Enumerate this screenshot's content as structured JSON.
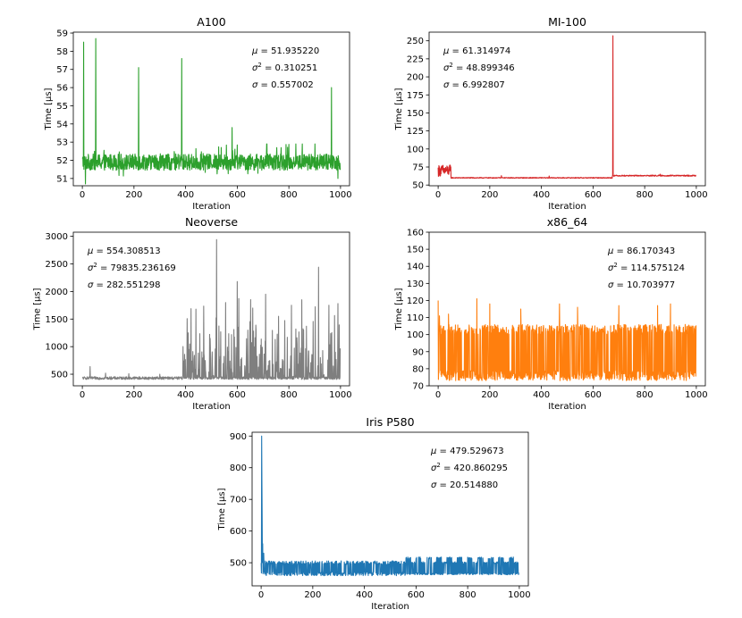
{
  "chart_data": [
    {
      "type": "line",
      "title": "A100",
      "xlabel": "Iteration",
      "ylabel": "Time [μs]",
      "xlim": [
        -35,
        1035
      ],
      "ylim": [
        50.6,
        59.05
      ],
      "xticks": [
        0,
        200,
        400,
        600,
        800,
        1000
      ],
      "yticks": [
        51,
        52,
        53,
        54,
        55,
        56,
        57,
        58,
        59
      ],
      "color": "#2ca02c",
      "stats": [
        {
          "sym": "μ",
          "sup": "",
          "value": "51.935220"
        },
        {
          "sym": "σ",
          "sup": "2",
          "value": "0.310251"
        },
        {
          "sym": "σ",
          "sup": "",
          "value": "0.557002"
        }
      ],
      "series": {
        "base": 51.9,
        "noise": 0.45,
        "min": 50.7,
        "max": 59,
        "spikes": [
          [
            5,
            58.5
          ],
          [
            12,
            50.7
          ],
          [
            52,
            58.7
          ],
          [
            218,
            57.1
          ],
          [
            385,
            57.6
          ],
          [
            580,
            53.8
          ],
          [
            965,
            56.0
          ],
          [
            990,
            51.0
          ]
        ]
      }
    },
    {
      "type": "line",
      "title": "MI-100",
      "xlabel": "Iteration",
      "ylabel": "Time [μs]",
      "xlim": [
        -35,
        1035
      ],
      "ylim": [
        49,
        262
      ],
      "xticks": [
        0,
        200,
        400,
        600,
        800,
        1000
      ],
      "yticks": [
        50,
        75,
        100,
        125,
        150,
        175,
        200,
        225,
        250
      ],
      "color": "#d62728",
      "stats": [
        {
          "sym": "μ",
          "sup": "",
          "value": "61.314974"
        },
        {
          "sym": "σ",
          "sup": "2",
          "value": "48.899346"
        },
        {
          "sym": "σ",
          "sup": "",
          "value": "6.992807"
        }
      ],
      "series": {
        "segments": [
          [
            0,
            50,
            70,
            8
          ],
          [
            50,
            675,
            60,
            0.6
          ],
          [
            675,
            1000,
            63,
            0.8
          ]
        ],
        "spikes": [
          [
            677,
            257
          ],
          [
            245,
            63
          ],
          [
            430,
            62.5
          ],
          [
            860,
            65
          ]
        ]
      }
    },
    {
      "type": "line",
      "title": "Neoverse",
      "xlabel": "Iteration",
      "ylabel": "Time [μs]",
      "xlim": [
        -35,
        1035
      ],
      "ylim": [
        290,
        3075
      ],
      "xticks": [
        0,
        200,
        400,
        600,
        800,
        1000
      ],
      "yticks": [
        500,
        1000,
        1500,
        2000,
        2500,
        3000
      ],
      "color": "#7f7f7f",
      "stats": [
        {
          "sym": "μ",
          "sup": "",
          "value": "554.308513"
        },
        {
          "sym": "σ",
          "sup": "2",
          "value": "79835.236169"
        },
        {
          "sym": "σ",
          "sup": "",
          "value": "282.551298"
        }
      ],
      "series": {
        "base": 430,
        "noise": 25,
        "burst_start": 390,
        "burst_prob": 0.35,
        "burst_max": 1500,
        "spikes": [
          [
            30,
            640
          ],
          [
            90,
            520
          ],
          [
            180,
            510
          ],
          [
            300,
            500
          ],
          [
            410,
            1250
          ],
          [
            440,
            1680
          ],
          [
            520,
            2940
          ],
          [
            555,
            1800
          ],
          [
            600,
            2180
          ],
          [
            660,
            1700
          ],
          [
            710,
            1950
          ],
          [
            760,
            1550
          ],
          [
            810,
            1750
          ],
          [
            850,
            1850
          ],
          [
            915,
            2440
          ],
          [
            955,
            1750
          ],
          [
            990,
            1780
          ]
        ]
      }
    },
    {
      "type": "line",
      "title": "x86_64",
      "xlabel": "Iteration",
      "ylabel": "Time [μs]",
      "xlim": [
        -35,
        1035
      ],
      "ylim": [
        70,
        160
      ],
      "xticks": [
        0,
        200,
        400,
        600,
        800,
        1000
      ],
      "yticks": [
        70,
        80,
        90,
        100,
        110,
        120,
        130,
        140,
        150,
        160
      ],
      "color": "#ff7f0e",
      "stats": [
        {
          "sym": "μ",
          "sup": "",
          "value": "86.170343"
        },
        {
          "sym": "σ",
          "sup": "2",
          "value": "114.575124"
        },
        {
          "sym": "σ",
          "sup": "",
          "value": "10.703977"
        }
      ],
      "series": {
        "low": 76,
        "high": 103,
        "noise": 3,
        "spikes": [
          [
            0,
            120
          ],
          [
            5,
            111
          ],
          [
            40,
            112
          ],
          [
            150,
            121
          ],
          [
            200,
            118
          ],
          [
            320,
            115
          ],
          [
            470,
            118
          ],
          [
            540,
            116
          ],
          [
            700,
            117
          ],
          [
            850,
            117
          ],
          [
            900,
            118
          ]
        ]
      }
    },
    {
      "type": "line",
      "title": "Iris P580",
      "xlabel": "Iteration",
      "ylabel": "Time [μs]",
      "xlim": [
        -35,
        1035
      ],
      "ylim": [
        427,
        912
      ],
      "xticks": [
        0,
        200,
        400,
        600,
        800,
        1000
      ],
      "yticks": [
        500,
        600,
        700,
        800,
        900
      ],
      "color": "#1f77b4",
      "stats": [
        {
          "sym": "μ",
          "sup": "",
          "value": "479.529673"
        },
        {
          "sym": "σ",
          "sup": "2",
          "value": "420.860295"
        },
        {
          "sym": "σ",
          "sup": "",
          "value": "20.514880"
        }
      ],
      "series": {
        "low": 465,
        "high": 500,
        "noise": 6,
        "square_start": 560,
        "square_period": 40,
        "square_high": 515,
        "spikes": [
          [
            2,
            900
          ],
          [
            3,
            760
          ],
          [
            4,
            640
          ],
          [
            6,
            560
          ],
          [
            10,
            530
          ]
        ]
      }
    }
  ]
}
